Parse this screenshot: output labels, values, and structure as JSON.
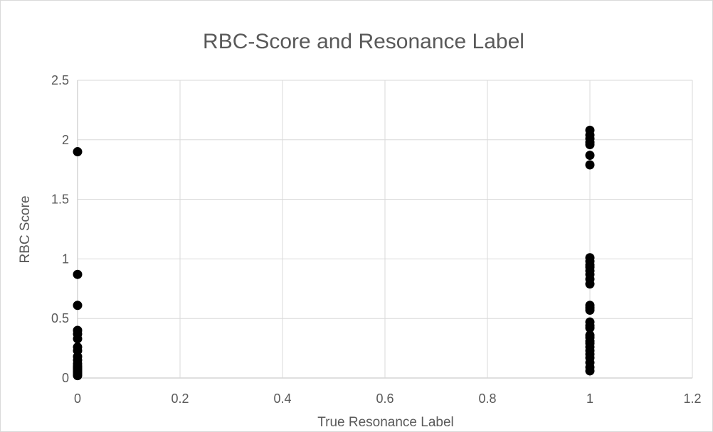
{
  "chart_data": {
    "type": "scatter",
    "title": "RBC-Score and Resonance Label",
    "xlabel": "True Resonance Label",
    "ylabel": "RBC Score",
    "xlim": [
      0,
      1.2
    ],
    "ylim": [
      0,
      2.5
    ],
    "xticks": [
      "0",
      "0.2",
      "0.4",
      "0.6",
      "0.8",
      "1",
      "1.2"
    ],
    "yticks": [
      "0",
      "0.5",
      "1",
      "1.5",
      "2",
      "2.5"
    ],
    "grid": true,
    "legend": "none",
    "marker_color": "#000000",
    "series": [
      {
        "x": [
          0,
          0,
          0,
          0,
          0,
          0,
          0,
          0,
          0,
          0,
          0,
          0,
          0,
          0,
          0,
          0,
          0,
          0,
          0,
          0,
          1,
          1,
          1,
          1,
          1,
          1,
          1,
          1,
          1,
          1,
          1,
          1,
          1,
          1,
          1,
          1,
          1,
          1,
          1,
          1,
          1,
          1,
          1,
          1,
          1,
          1,
          1,
          1,
          1,
          1,
          1,
          1
        ],
        "y": [
          1.9,
          0.87,
          0.61,
          0.4,
          0.37,
          0.33,
          0.26,
          0.23,
          0.18,
          0.15,
          0.12,
          0.1,
          0.09,
          0.08,
          0.07,
          0.06,
          0.05,
          0.04,
          0.03,
          0.02,
          2.08,
          2.04,
          2.01,
          1.98,
          1.96,
          1.87,
          1.79,
          1.01,
          0.98,
          0.95,
          0.93,
          0.9,
          0.87,
          0.83,
          0.79,
          0.61,
          0.59,
          0.57,
          0.47,
          0.44,
          0.42,
          0.36,
          0.34,
          0.31,
          0.29,
          0.26,
          0.23,
          0.2,
          0.17,
          0.13,
          0.09,
          0.06
        ]
      }
    ]
  }
}
